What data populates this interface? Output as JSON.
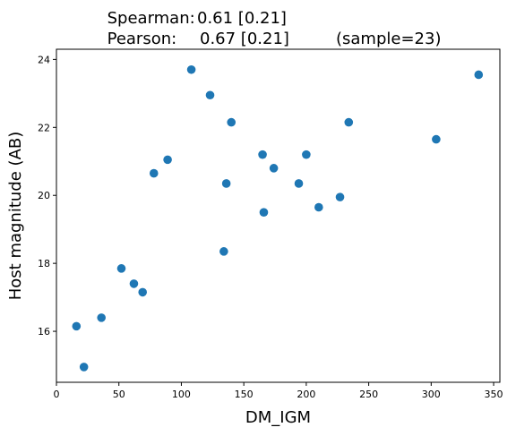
{
  "chart_data": {
    "type": "scatter",
    "title_lines": [
      {
        "label": "Spearman:",
        "value": "0.61 [0.21]",
        "extra": ""
      },
      {
        "label": "Pearson:",
        "value": "0.67 [0.21]",
        "extra": "(sample=23)"
      }
    ],
    "xlabel": "DM_IGM",
    "ylabel": "Host magnitude (AB)",
    "xlim": [
      0,
      355
    ],
    "ylim": [
      14.5,
      24.3
    ],
    "xticks": [
      0,
      50,
      100,
      150,
      200,
      250,
      300,
      350
    ],
    "yticks": [
      16,
      18,
      20,
      22,
      24
    ],
    "marker_color": "#1f77b4",
    "grid": false,
    "points": [
      {
        "x": 16,
        "y": 16.15
      },
      {
        "x": 22,
        "y": 14.95
      },
      {
        "x": 36,
        "y": 16.4
      },
      {
        "x": 52,
        "y": 17.85
      },
      {
        "x": 62,
        "y": 17.4
      },
      {
        "x": 69,
        "y": 17.15
      },
      {
        "x": 78,
        "y": 20.65
      },
      {
        "x": 89,
        "y": 21.05
      },
      {
        "x": 108,
        "y": 23.7
      },
      {
        "x": 123,
        "y": 22.95
      },
      {
        "x": 134,
        "y": 18.35
      },
      {
        "x": 136,
        "y": 20.35
      },
      {
        "x": 140,
        "y": 22.15
      },
      {
        "x": 165,
        "y": 21.2
      },
      {
        "x": 166,
        "y": 19.5
      },
      {
        "x": 174,
        "y": 20.8
      },
      {
        "x": 194,
        "y": 20.35
      },
      {
        "x": 200,
        "y": 21.2
      },
      {
        "x": 210,
        "y": 19.65
      },
      {
        "x": 227,
        "y": 19.95
      },
      {
        "x": 234,
        "y": 22.15
      },
      {
        "x": 304,
        "y": 21.65
      },
      {
        "x": 338,
        "y": 23.55
      }
    ]
  }
}
